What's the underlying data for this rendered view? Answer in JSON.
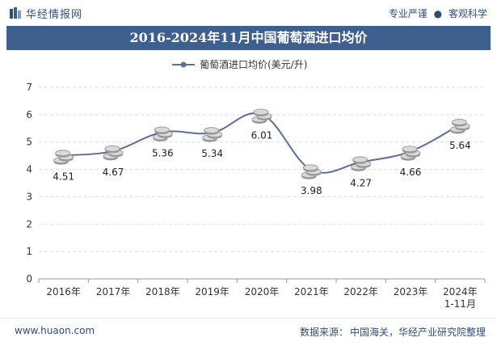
{
  "header": {
    "brand": "华经情报网",
    "tagline_left": "专业严谨",
    "tagline_right": "客观科学"
  },
  "title": "2016-2024年11月中国葡萄酒进口均价",
  "footer": {
    "url": "www.huaon.com",
    "source_label": "数据来源：",
    "source_text": "中国海关，华经产业研究院整理"
  },
  "chart_data": {
    "type": "line",
    "title": "2016-2024年11月中国葡萄酒进口均价",
    "categories": [
      "2016年",
      "2017年",
      "2018年",
      "2019年",
      "2020年",
      "2021年",
      "2022年",
      "2023年",
      "2024年1-11月"
    ],
    "series": [
      {
        "name": "葡萄酒进口均价(美元/升)",
        "values": [
          4.51,
          4.67,
          5.36,
          5.34,
          6.01,
          3.98,
          4.27,
          4.66,
          5.64
        ],
        "labels": [
          "4.51",
          "4.67",
          "5.36",
          "5.34",
          "6.01",
          "3.98",
          "4.27",
          "4.66",
          "5.64"
        ],
        "color": "#5b6f9a"
      }
    ],
    "ylim": [
      0,
      7
    ],
    "yticks": [
      "0",
      "1",
      "2",
      "3",
      "4",
      "5",
      "6",
      "7"
    ],
    "grid": true,
    "legend": "top-center",
    "xlabel": "",
    "ylabel": ""
  }
}
